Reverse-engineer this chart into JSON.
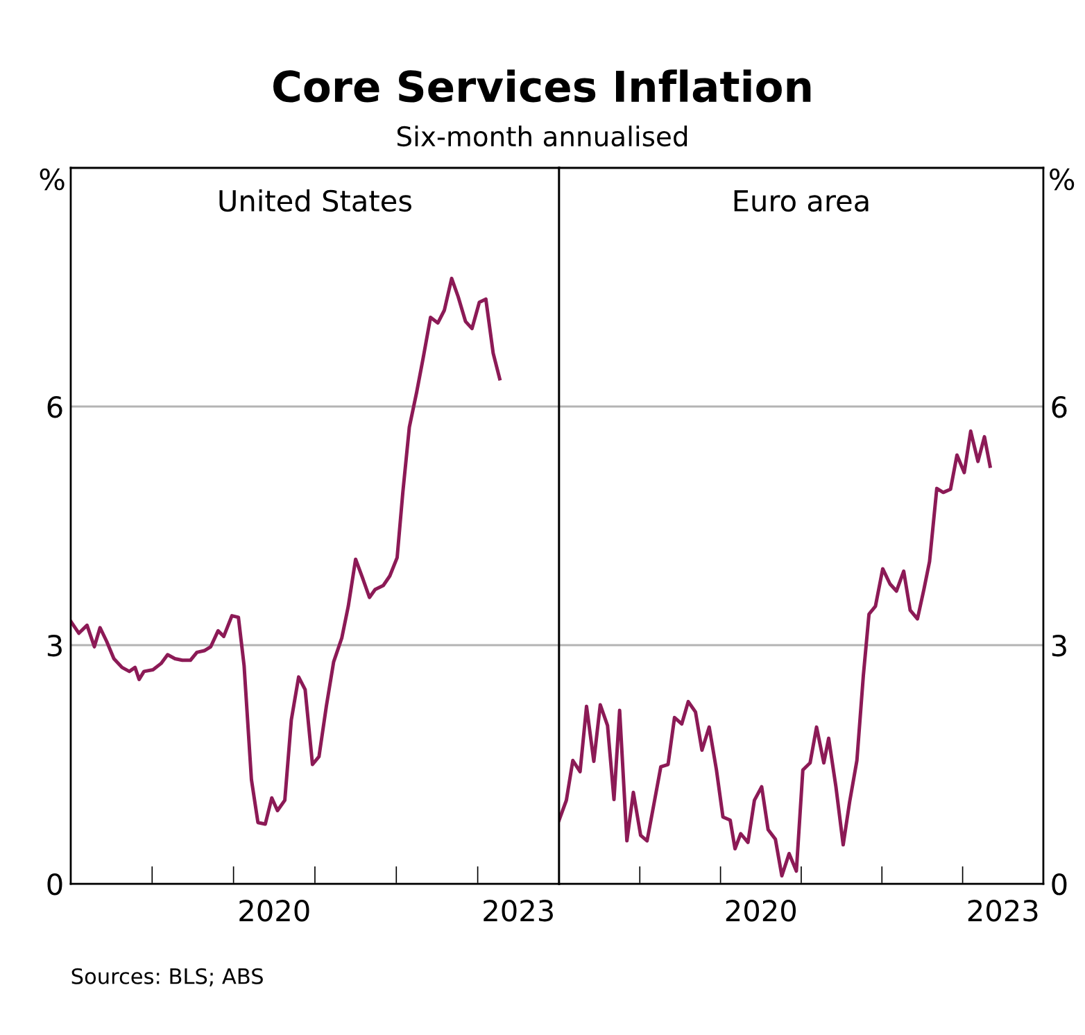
{
  "chart_data": [
    {
      "type": "other",
      "title": "Core Services Inflation",
      "subtitle": "Six-month annualised",
      "annotations": [
        "Sources: BLS; ABS"
      ]
    },
    {
      "type": "line",
      "title": "United States",
      "ylabel": "%",
      "xlim": [
        2018,
        2024
      ],
      "ylim": [
        0,
        9
      ],
      "yticks": [
        0,
        3,
        6
      ],
      "grid": "y",
      "xticks": [
        {
          "value": 2019,
          "label": null
        },
        {
          "value": 2020,
          "label": null
        },
        {
          "value": 2021,
          "label": null
        },
        {
          "value": 2022,
          "label": null
        },
        {
          "value": 2023,
          "label": null
        },
        {
          "value": 2020.5,
          "label": "2020"
        },
        {
          "value": 2023.5,
          "label": "2023"
        }
      ],
      "series": [
        {
          "color": "#8c1a56",
          "x": [
            2018.0,
            2018.1,
            2018.2,
            2018.29,
            2018.36,
            2018.44,
            2018.53,
            2018.63,
            2018.72,
            2018.79,
            2018.84,
            2018.9,
            2019.01,
            2019.11,
            2019.19,
            2019.28,
            2019.37,
            2019.47,
            2019.55,
            2019.64,
            2019.72,
            2019.81,
            2019.88,
            2019.98,
            2020.06,
            2020.13,
            2020.22,
            2020.3,
            2020.39,
            2020.47,
            2020.54,
            2020.63,
            2020.71,
            2020.8,
            2020.88,
            2020.97,
            2021.05,
            2021.14,
            2021.23,
            2021.33,
            2021.41,
            2021.5,
            2021.58,
            2021.67,
            2021.74,
            2021.84,
            2021.92,
            2022.01,
            2022.08,
            2022.16,
            2022.25,
            2022.33,
            2022.42,
            2022.51,
            2022.59,
            2022.68,
            2022.76,
            2022.85,
            2022.93,
            2023.02,
            2023.1,
            2023.19,
            2023.27
          ],
          "values": [
            3.3,
            3.15,
            3.25,
            2.98,
            3.22,
            3.05,
            2.83,
            2.72,
            2.67,
            2.72,
            2.57,
            2.67,
            2.69,
            2.77,
            2.88,
            2.83,
            2.81,
            2.81,
            2.91,
            2.93,
            2.98,
            3.18,
            3.11,
            3.37,
            3.35,
            2.74,
            1.31,
            0.77,
            0.75,
            1.08,
            0.92,
            1.05,
            2.06,
            2.6,
            2.44,
            1.5,
            1.6,
            2.23,
            2.79,
            3.09,
            3.49,
            4.08,
            3.86,
            3.6,
            3.7,
            3.75,
            3.87,
            4.1,
            4.92,
            5.74,
            6.18,
            6.61,
            7.12,
            7.05,
            7.21,
            7.61,
            7.38,
            7.07,
            6.98,
            7.31,
            7.35,
            6.67,
            6.35
          ]
        }
      ]
    },
    {
      "type": "line",
      "title": "Euro area",
      "ylabel": "%",
      "xlim": [
        2018,
        2024
      ],
      "ylim": [
        0,
        9
      ],
      "yticks": [
        0,
        3,
        6
      ],
      "grid": "y",
      "xticks": [
        {
          "value": 2019,
          "label": null
        },
        {
          "value": 2020,
          "label": null
        },
        {
          "value": 2021,
          "label": null
        },
        {
          "value": 2022,
          "label": null
        },
        {
          "value": 2023,
          "label": null
        },
        {
          "value": 2020.5,
          "label": "2020"
        },
        {
          "value": 2023.5,
          "label": "2023"
        }
      ],
      "series": [
        {
          "color": "#8c1a56",
          "x": [
            2018.0,
            2018.09,
            2018.17,
            2018.26,
            2018.34,
            2018.43,
            2018.51,
            2018.6,
            2018.68,
            2018.75,
            2018.84,
            2018.92,
            2019.01,
            2019.09,
            2019.18,
            2019.26,
            2019.35,
            2019.43,
            2019.52,
            2019.6,
            2019.69,
            2019.77,
            2019.86,
            2019.95,
            2020.03,
            2020.12,
            2020.18,
            2020.25,
            2020.34,
            2020.42,
            2020.51,
            2020.59,
            2020.68,
            2020.76,
            2020.85,
            2020.94,
            2021.02,
            2021.11,
            2021.19,
            2021.28,
            2021.34,
            2021.43,
            2021.52,
            2021.6,
            2021.69,
            2021.77,
            2021.84,
            2021.92,
            2022.01,
            2022.1,
            2022.18,
            2022.27,
            2022.35,
            2022.44,
            2022.52,
            2022.59,
            2022.68,
            2022.76,
            2022.85,
            2022.93,
            2023.02,
            2023.1,
            2023.19,
            2023.27,
            2023.34
          ],
          "values": [
            0.8,
            1.05,
            1.55,
            1.41,
            2.23,
            1.54,
            2.25,
            1.99,
            1.06,
            2.18,
            0.54,
            1.15,
            0.61,
            0.54,
            1.03,
            1.47,
            1.5,
            2.09,
            2.01,
            2.29,
            2.16,
            1.68,
            1.97,
            1.43,
            0.84,
            0.8,
            0.44,
            0.63,
            0.52,
            1.05,
            1.22,
            0.68,
            0.56,
            0.1,
            0.38,
            0.16,
            1.43,
            1.52,
            1.97,
            1.52,
            1.83,
            1.22,
            0.49,
            1.03,
            1.55,
            2.62,
            3.39,
            3.49,
            3.96,
            3.77,
            3.68,
            3.93,
            3.44,
            3.33,
            3.7,
            4.05,
            4.97,
            4.92,
            4.96,
            5.39,
            5.17,
            5.69,
            5.31,
            5.62,
            5.25
          ]
        }
      ]
    }
  ]
}
